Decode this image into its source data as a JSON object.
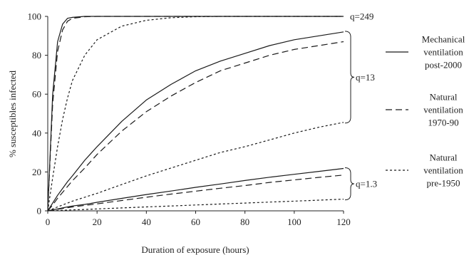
{
  "chart_data": {
    "type": "line",
    "xlabel": "Duration of exposure (hours)",
    "ylabel": "% susceptibles infected",
    "xlim": [
      0,
      120
    ],
    "ylim": [
      0,
      100
    ],
    "x_ticks": [
      "0",
      "20",
      "40",
      "60",
      "80",
      "100",
      "120"
    ],
    "y_ticks": [
      "0",
      "20",
      "40",
      "60",
      "80",
      "100"
    ],
    "grid": false,
    "legend_position": "right",
    "legend": [
      {
        "style": "solid",
        "lines": [
          "Mechanical",
          "ventilation",
          "post-2000"
        ]
      },
      {
        "style": "dashed",
        "lines": [
          "Natural",
          "ventilation",
          "1970-90"
        ]
      },
      {
        "style": "dotted",
        "lines": [
          "Natural",
          "ventilation",
          "pre-1950"
        ]
      }
    ],
    "groups": [
      {
        "label": "q=249",
        "brace": false
      },
      {
        "label": "q=13",
        "brace": true
      },
      {
        "label": "q=1.3",
        "brace": true
      }
    ],
    "x": [
      0,
      2,
      4,
      6,
      8,
      10,
      15,
      20,
      30,
      40,
      50,
      60,
      70,
      80,
      90,
      100,
      110,
      120
    ],
    "series": [
      {
        "group": "q=249",
        "style": "solid",
        "values": [
          0,
          60,
          87,
          96,
          99,
          99.5,
          100,
          100,
          100,
          100,
          100,
          100,
          100,
          100,
          100,
          100,
          100,
          100
        ]
      },
      {
        "group": "q=249",
        "style": "dashed",
        "values": [
          0,
          55,
          82,
          93,
          97.5,
          99,
          99.8,
          100,
          100,
          100,
          100,
          100,
          100,
          100,
          100,
          100,
          100,
          100
        ]
      },
      {
        "group": "q=249",
        "style": "dotted",
        "values": [
          0,
          17,
          33,
          47,
          58,
          67,
          80,
          88,
          95,
          98,
          99.3,
          99.8,
          100,
          100,
          100,
          100,
          100,
          100
        ]
      },
      {
        "group": "q=13",
        "style": "solid",
        "values": [
          0,
          4,
          8,
          11.5,
          15,
          18,
          26,
          33,
          46,
          57,
          65,
          72,
          77,
          81,
          85,
          88,
          90,
          92
        ]
      },
      {
        "group": "q=13",
        "style": "dashed",
        "values": [
          0,
          3,
          6.5,
          9.5,
          12.5,
          15.5,
          22,
          29,
          41,
          51,
          59,
          66,
          72,
          76,
          80,
          83,
          85,
          87
        ]
      },
      {
        "group": "q=13",
        "style": "dotted",
        "values": [
          0,
          1,
          2,
          3,
          4,
          5,
          7,
          9,
          13.5,
          18,
          22,
          26,
          30,
          33,
          36.5,
          40,
          43,
          45.5
        ]
      },
      {
        "group": "q=1.3",
        "style": "solid",
        "values": [
          0,
          0.5,
          1,
          1.5,
          2,
          2.5,
          3.3,
          4.4,
          6.4,
          8.4,
          10.2,
          12.1,
          13.8,
          15.6,
          17.3,
          18.8,
          20.3,
          21.8
        ]
      },
      {
        "group": "q=1.3",
        "style": "dashed",
        "values": [
          0,
          0.4,
          0.8,
          1.2,
          1.6,
          2,
          2.8,
          3.6,
          5.3,
          7,
          8.6,
          10.1,
          11.6,
          13,
          14.6,
          15.9,
          17.2,
          18.4
        ]
      },
      {
        "group": "q=1.3",
        "style": "dotted",
        "values": [
          0,
          0.1,
          0.2,
          0.3,
          0.4,
          0.5,
          0.7,
          1,
          1.5,
          2,
          2.5,
          3,
          3.5,
          4,
          4.5,
          5,
          5.5,
          6
        ]
      }
    ]
  }
}
